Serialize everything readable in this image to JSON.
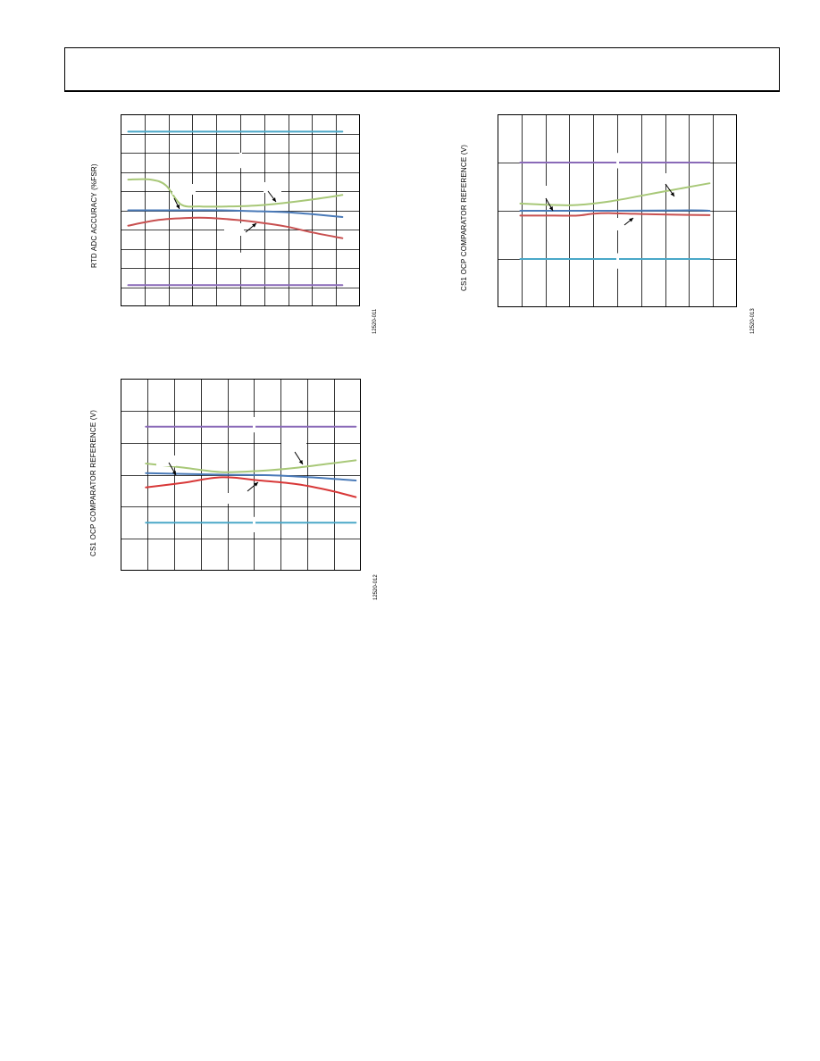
{
  "page": {
    "header": ""
  },
  "charts": [
    {
      "ylabel": "RTD ADC ACCURACY (%FSR)",
      "figure_id": "12520-011"
    },
    {
      "ylabel": "CS1 OCP COMPARATOR REFERENCE (V)",
      "figure_id": "12520-013"
    },
    {
      "ylabel": "CS1 OCP COMPARATOR REFERENCE (V)",
      "figure_id": "12520-012"
    }
  ],
  "chart_data": [
    {
      "type": "line",
      "xlabel": "",
      "ylabel": "RTD ADC ACCURACY (%FSR)",
      "x": [
        0,
        1,
        2,
        3,
        4,
        5,
        6,
        7,
        8,
        9
      ],
      "xlim": [
        0,
        9.5
      ],
      "ylim": [
        0,
        10
      ],
      "grid": true,
      "series": [
        {
          "color": "#4aa8c8",
          "x": [
            0.3,
            8.8
          ],
          "values": [
            9.1,
            9.1
          ]
        },
        {
          "color": "#a8c878",
          "x": [
            0.3,
            1.2,
            1.8,
            2.4,
            3.2,
            4.2,
            5.4,
            6.6,
            7.8,
            8.8
          ],
          "values": [
            6.6,
            6.6,
            6.3,
            5.3,
            5.2,
            5.2,
            5.25,
            5.4,
            5.6,
            5.8
          ]
        },
        {
          "color": "#4a7ab8",
          "x": [
            0.3,
            2.0,
            4.0,
            5.5,
            6.6,
            7.6,
            8.8
          ],
          "values": [
            5.0,
            5.0,
            5.0,
            4.95,
            4.9,
            4.8,
            4.65
          ]
        },
        {
          "color": "#c85050",
          "x": [
            0.3,
            1.5,
            2.6,
            3.6,
            4.6,
            5.6,
            6.6,
            7.6,
            8.8
          ],
          "values": [
            4.2,
            4.5,
            4.6,
            4.6,
            4.5,
            4.35,
            4.15,
            3.85,
            3.55
          ]
        },
        {
          "color": "#8a6ab8",
          "x": [
            0.3,
            8.8
          ],
          "values": [
            1.1,
            1.1
          ]
        }
      ]
    },
    {
      "type": "line",
      "xlabel": "",
      "ylabel": "CS1 OCP COMPARATOR REFERENCE (V)",
      "x": [
        0,
        1,
        2,
        3,
        4,
        5,
        6,
        7,
        8,
        9,
        10
      ],
      "xlim": [
        0,
        10.5
      ],
      "ylim": [
        0,
        4
      ],
      "grid": true,
      "series": [
        {
          "color": "#8a6ab8",
          "x": [
            1.0,
            9.3
          ],
          "values": [
            3.0,
            3.0
          ]
        },
        {
          "color": "#a8c878",
          "x": [
            1.0,
            2.5,
            3.5,
            5.0,
            6.5,
            8.0,
            9.3
          ],
          "values": [
            2.15,
            2.12,
            2.12,
            2.2,
            2.33,
            2.46,
            2.57
          ]
        },
        {
          "color": "#4a7ab8",
          "x": [
            1.0,
            5.0,
            8.5,
            9.3
          ],
          "values": [
            2.0,
            2.0,
            2.01,
            2.0
          ]
        },
        {
          "color": "#c85050",
          "x": [
            1.0,
            2.5,
            3.5,
            4.2,
            5.0,
            6.5,
            7.5,
            9.3
          ],
          "values": [
            1.9,
            1.9,
            1.9,
            1.94,
            1.95,
            1.93,
            1.92,
            1.91
          ]
        },
        {
          "color": "#4aa8c8",
          "x": [
            1.0,
            9.3
          ],
          "values": [
            1.0,
            1.0
          ]
        }
      ]
    },
    {
      "type": "line",
      "xlabel": "",
      "ylabel": "CS1 OCP COMPARATOR REFERENCE (V)",
      "x": [
        0,
        1,
        2,
        3,
        4,
        5,
        6,
        7,
        8,
        9
      ],
      "xlim": [
        0,
        9.5
      ],
      "ylim": [
        0,
        6
      ],
      "grid": true,
      "series": [
        {
          "color": "#8a6ab8",
          "x": [
            1.0,
            9.3
          ],
          "values": [
            4.5,
            4.5
          ]
        },
        {
          "color": "#a8c878",
          "x": [
            1.0,
            2.5,
            4.0,
            5.5,
            7.0,
            8.3,
            9.3
          ],
          "values": [
            3.35,
            3.22,
            3.08,
            3.12,
            3.22,
            3.35,
            3.45
          ]
        },
        {
          "color": "#4a7ab8",
          "x": [
            1.0,
            4.0,
            6.0,
            7.5,
            9.3
          ],
          "values": [
            3.05,
            3.0,
            2.98,
            2.92,
            2.82
          ]
        },
        {
          "color": "#d83838",
          "x": [
            1.0,
            2.5,
            4.0,
            5.5,
            7.0,
            8.3,
            9.3
          ],
          "values": [
            2.6,
            2.75,
            2.92,
            2.82,
            2.7,
            2.5,
            2.3
          ]
        },
        {
          "color": "#4aa8c8",
          "x": [
            1.0,
            9.3
          ],
          "values": [
            1.5,
            1.5
          ]
        }
      ]
    }
  ]
}
